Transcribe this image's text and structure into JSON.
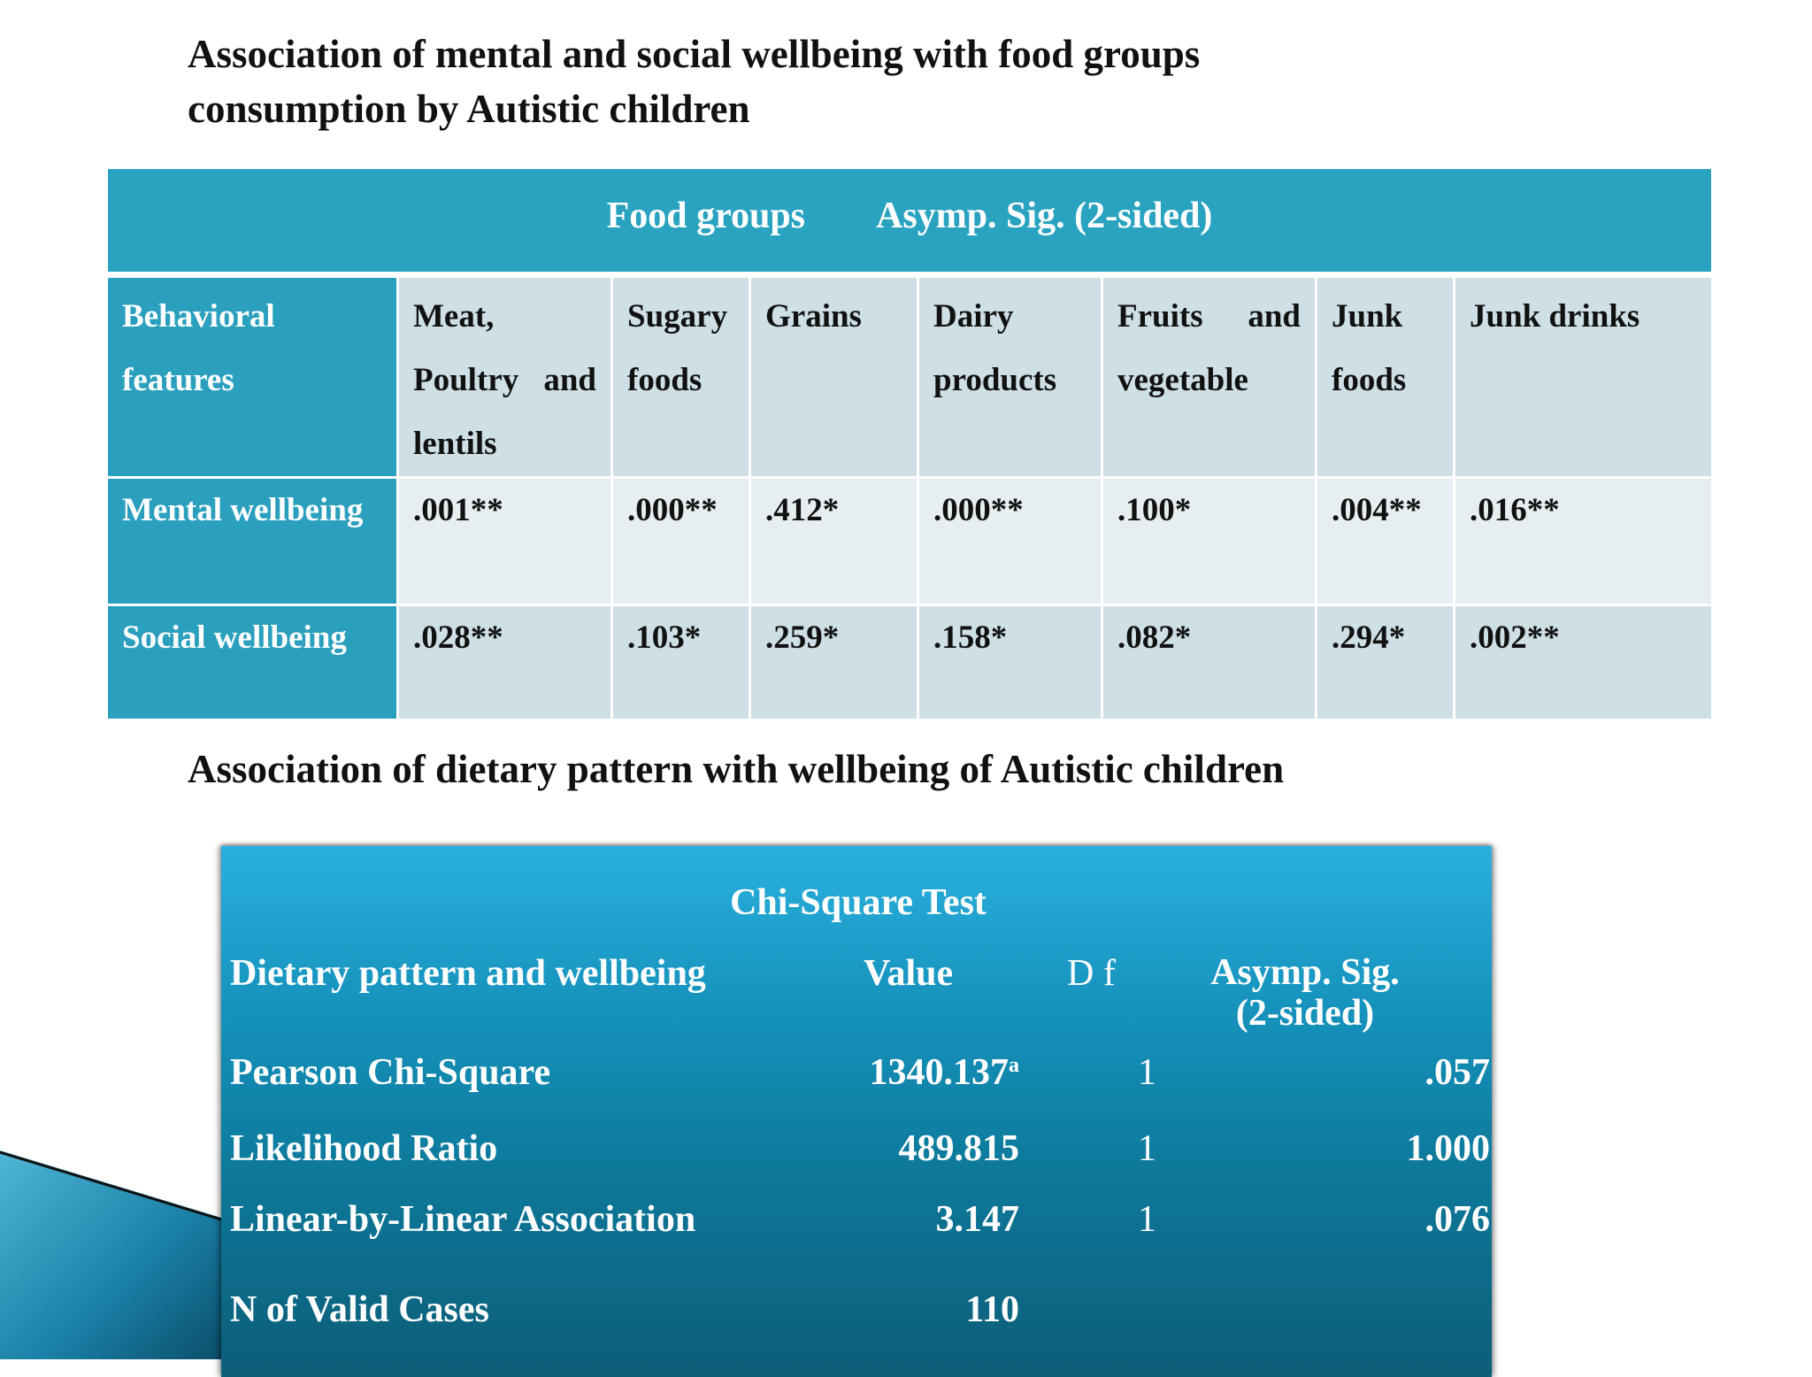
{
  "title1_line1": "Association of mental and social wellbeing with food groups",
  "title1_line2": "consumption by Autistic children",
  "table1": {
    "header_a": "Food groups",
    "header_b": "Asymp. Sig. (2-sided)",
    "columns": [
      "Behavioral features",
      "Meat, Poultry and lentils",
      "Sugary foods",
      "Grains",
      "Dairy products",
      "Fruits and vegetable",
      "Junk foods",
      "Junk drinks"
    ],
    "rows": [
      {
        "label": "Mental wellbeing",
        "values": [
          ".001**",
          ".000**",
          ".412*",
          ".000**",
          ".100*",
          ".004**",
          ".016**"
        ]
      },
      {
        "label": "Social wellbeing",
        "values": [
          ".028**",
          ".103*",
          ".259*",
          ".158*",
          ".082*",
          ".294*",
          ".002**"
        ]
      }
    ]
  },
  "title2": "Association of dietary pattern with wellbeing of Autistic children",
  "table2": {
    "title": "Chi-Square Test",
    "headers": {
      "label": "Dietary pattern and wellbeing",
      "value": "Value",
      "df": "D f",
      "sig_line1": "Asymp. Sig.",
      "sig_line2": "(2-sided)"
    },
    "rows": [
      {
        "label": "Pearson Chi-Square",
        "value": "1340.137",
        "footnote": "a",
        "df": "1",
        "sig": ".057"
      },
      {
        "label": "Likelihood Ratio",
        "value": "489.815",
        "df": "1",
        "sig": "1.000"
      },
      {
        "label": "Linear-by-Linear Association",
        "value": "3.147",
        "df": "1",
        "sig": ".076"
      },
      {
        "label": "N of Valid Cases",
        "value": "110",
        "df": "",
        "sig": ""
      }
    ]
  },
  "colors": {
    "header_teal": "#2aa3c1",
    "row_light": "#e7eef1",
    "row_mid": "#cfdfe6",
    "chi_top": "#2ab0de",
    "chi_bottom": "#0d5d78"
  }
}
